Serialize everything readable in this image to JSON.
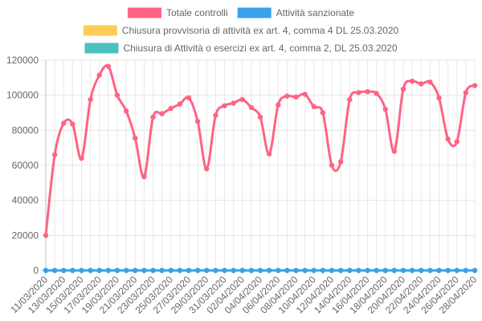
{
  "chart_data": {
    "type": "line",
    "title": "",
    "xlabel": "",
    "ylabel": "",
    "ylim": [
      0,
      120000
    ],
    "yticks": [
      0,
      20000,
      40000,
      60000,
      80000,
      100000,
      120000
    ],
    "grid": true,
    "legend_position": "top",
    "x": [
      "11/03/2020",
      "12/03/2020",
      "13/03/2020",
      "14/03/2020",
      "15/03/2020",
      "16/03/2020",
      "17/03/2020",
      "18/03/2020",
      "19/03/2020",
      "20/03/2020",
      "21/03/2020",
      "22/03/2020",
      "23/03/2020",
      "24/03/2020",
      "25/03/2020",
      "26/03/2020",
      "27/03/2020",
      "28/03/2020",
      "29/03/2020",
      "30/03/2020",
      "31/03/2020",
      "01/04/2020",
      "02/04/2020",
      "03/04/2020",
      "04/04/2020",
      "05/04/2020",
      "06/04/2020",
      "07/04/2020",
      "08/04/2020",
      "09/04/2020",
      "10/04/2020",
      "11/04/2020",
      "12/04/2020",
      "13/04/2020",
      "14/04/2020",
      "15/04/2020",
      "16/04/2020",
      "17/04/2020",
      "18/04/2020",
      "19/04/2020",
      "20/04/2020",
      "21/04/2020",
      "22/04/2020",
      "23/04/2020",
      "24/04/2020",
      "25/04/2020",
      "26/04/2020",
      "27/04/2020",
      "28/04/2020"
    ],
    "xticks_shown": [
      "11/03/2020",
      "13/03/2020",
      "15/03/2020",
      "17/03/2020",
      "19/03/2020",
      "21/03/2020",
      "23/03/2020",
      "25/03/2020",
      "27/03/2020",
      "29/03/2020",
      "31/03/2020",
      "02/04/2020",
      "04/04/2020",
      "06/04/2020",
      "08/04/2020",
      "10/04/2020",
      "12/04/2020",
      "14/04/2020",
      "16/04/2020",
      "18/04/2020",
      "20/04/2020",
      "22/04/2020",
      "24/04/2020",
      "26/04/2020",
      "28/04/2020"
    ],
    "series": [
      {
        "name": "Totale controlli",
        "color": "#ff6384",
        "values": [
          20000,
          66000,
          84000,
          83500,
          64000,
          97500,
          111500,
          116500,
          100000,
          91000,
          75500,
          53500,
          87500,
          89500,
          92500,
          95000,
          98500,
          85000,
          58000,
          88500,
          94000,
          95500,
          97500,
          93000,
          87500,
          66500,
          94500,
          99500,
          99000,
          100500,
          93500,
          90000,
          60000,
          62000,
          97500,
          101500,
          102000,
          101000,
          92000,
          68000,
          103500,
          108000,
          106500,
          107500,
          98500,
          75000,
          73500,
          101500,
          105500
        ]
      },
      {
        "name": "Attività sanzionate",
        "color": "#36a2eb",
        "values": [
          0,
          0,
          0,
          0,
          0,
          0,
          0,
          0,
          0,
          0,
          0,
          0,
          0,
          0,
          0,
          0,
          0,
          0,
          0,
          0,
          0,
          0,
          0,
          0,
          0,
          0,
          0,
          0,
          0,
          0,
          0,
          0,
          0,
          0,
          0,
          0,
          0,
          0,
          0,
          0,
          0,
          0,
          0,
          0,
          0,
          0,
          0,
          0,
          0
        ]
      },
      {
        "name": "Chiusura provvisoria di attività ex art. 4, comma 4 DL 25.03.2020",
        "color": "#ffcd56",
        "values": [
          0,
          0,
          0,
          0,
          0,
          0,
          0,
          0,
          0,
          0,
          0,
          0,
          0,
          0,
          0,
          0,
          0,
          0,
          0,
          0,
          0,
          0,
          0,
          0,
          0,
          0,
          0,
          0,
          0,
          0,
          0,
          0,
          0,
          0,
          0,
          0,
          0,
          0,
          0,
          0,
          0,
          0,
          0,
          0,
          0,
          0,
          0,
          0,
          0
        ]
      },
      {
        "name": "Chiusura di Attività o esercizi ex art. 4, comma 2, DL 25.03.2020",
        "color": "#4bc0c0",
        "values": [
          0,
          0,
          0,
          0,
          0,
          0,
          0,
          0,
          0,
          0,
          0,
          0,
          0,
          0,
          0,
          0,
          0,
          0,
          0,
          0,
          0,
          0,
          0,
          0,
          0,
          0,
          0,
          0,
          0,
          0,
          0,
          0,
          0,
          0,
          0,
          0,
          0,
          0,
          0,
          0,
          0,
          0,
          0,
          0,
          0,
          0,
          0,
          0,
          0
        ]
      }
    ]
  }
}
